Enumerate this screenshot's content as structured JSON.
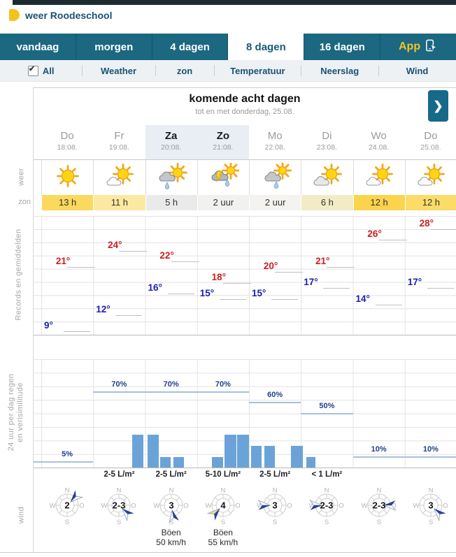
{
  "brand": {
    "title": "weer Roodeschool"
  },
  "top_nav": {
    "tabs": [
      {
        "label": "vandaag",
        "active": false
      },
      {
        "label": "morgen",
        "active": false
      },
      {
        "label": "4 dagen",
        "active": false
      },
      {
        "label": "8 dagen",
        "active": true
      },
      {
        "label": "16 dagen",
        "active": false
      }
    ],
    "app": {
      "label": "App"
    }
  },
  "sub_nav": {
    "all": {
      "label": "All",
      "checked": true,
      "check_glyph": "✔"
    },
    "items": [
      "Weather",
      "zon",
      "Temperatuur",
      "Neerslag",
      "Wind"
    ]
  },
  "period_header": {
    "title": "komende acht dagen",
    "subtitle": "tot en met donderdag, 25.08.",
    "next_button": "❯"
  },
  "days": [
    {
      "name": "Do",
      "date": "18:08.",
      "weekend": false
    },
    {
      "name": "Fr",
      "date": "19:08.",
      "weekend": false
    },
    {
      "name": "Za",
      "date": "20:08.",
      "weekend": true
    },
    {
      "name": "Zo",
      "date": "21:08.",
      "weekend": true
    },
    {
      "name": "Mo",
      "date": "22:08.",
      "weekend": false
    },
    {
      "name": "Di",
      "date": "23:08.",
      "weekend": false
    },
    {
      "name": "Wo",
      "date": "24.08.",
      "weekend": false
    },
    {
      "name": "Do",
      "date": "25.08.",
      "weekend": false
    }
  ],
  "weather_row": {
    "label": "weer",
    "icons": [
      "sun",
      "sun-cloud",
      "rain-sun",
      "thunder-rain-sun",
      "rain-cloud-sun",
      "cloud-sun",
      "sun-cloud",
      "sun-cloud"
    ]
  },
  "sun_row": {
    "label": "zon",
    "values": [
      {
        "text": "13 h",
        "bg": "#fbd95e"
      },
      {
        "text": "11 h",
        "bg": "#fce9a0"
      },
      {
        "text": "5 h",
        "bg": "#eaeaea"
      },
      {
        "text": "2 uur",
        "bg": "#f1f1ef"
      },
      {
        "text": "2 uur",
        "bg": "#f4f3f0"
      },
      {
        "text": "6 h",
        "bg": "#f2ecc6"
      },
      {
        "text": "12 h",
        "bg": "#fbd44e"
      },
      {
        "text": "12 h",
        "bg": "#fbdc69"
      }
    ]
  },
  "chart_data": [
    {
      "type": "line",
      "name": "temperature",
      "ylabel_rotated": "Records en gemiddelden",
      "unit": "°",
      "categories": [
        "Do",
        "Fr",
        "Za",
        "Zo",
        "Mo",
        "Di",
        "Wo",
        "Do"
      ],
      "ylim": [
        8,
        29
      ],
      "grid": true,
      "series": [
        {
          "name": "max",
          "color": "#cc1e1e",
          "values": [
            21,
            24,
            22,
            18,
            20,
            21,
            26,
            28
          ]
        },
        {
          "name": "min",
          "color": "#1e1eb4",
          "values": [
            9,
            12,
            16,
            15,
            15,
            17,
            14,
            17
          ]
        }
      ]
    },
    {
      "type": "bar",
      "name": "precipitation",
      "ylabel_rotated": "24 uur per dag regen en verisimilitude",
      "label_lines": [
        "24 uur per dag regen",
        "en verisimilitude"
      ],
      "categories": [
        "Do",
        "Fr",
        "Za",
        "Zo",
        "Mo",
        "Di",
        "Wo",
        "Do"
      ],
      "probability_percent_scale": [
        0,
        100
      ],
      "probability_segments": [
        {
          "label": "5%",
          "value": 5,
          "start_col": 0,
          "end_col": 0,
          "label_cols": [
            0
          ]
        },
        {
          "label": "70%",
          "value": 70,
          "start_col": 1,
          "end_col": 3,
          "label_cols": [
            1,
            2,
            3
          ]
        },
        {
          "label": "60%",
          "value": 60,
          "start_col": 4,
          "end_col": 4,
          "label_cols": [
            4
          ]
        },
        {
          "label": "50%",
          "value": 50,
          "start_col": 5,
          "end_col": 5,
          "label_cols": [
            5
          ]
        },
        {
          "label": "10%",
          "value": 10,
          "start_col": 6,
          "end_col": 7,
          "label_cols": [
            6,
            7
          ]
        }
      ],
      "amount_labels": [
        {
          "col": 1,
          "text": "2-5 L/m²"
        },
        {
          "col": 2,
          "text": "2-5 L/m²"
        },
        {
          "col": 3,
          "text": "5-10 L/m²"
        },
        {
          "col": 4,
          "text": "2-5 L/m²"
        },
        {
          "col": 5,
          "text": "< 1 L/m²"
        }
      ],
      "bars": [
        {
          "x": 130,
          "w": 16,
          "h": 47
        },
        {
          "x": 152,
          "w": 16,
          "h": 47
        },
        {
          "x": 170,
          "w": 15,
          "h": 15
        },
        {
          "x": 189,
          "w": 15,
          "h": 15
        },
        {
          "x": 244,
          "w": 16,
          "h": 15
        },
        {
          "x": 262,
          "w": 17,
          "h": 47
        },
        {
          "x": 280,
          "w": 17,
          "h": 47
        },
        {
          "x": 300,
          "w": 15,
          "h": 31
        },
        {
          "x": 319,
          "w": 15,
          "h": 31
        },
        {
          "x": 357,
          "w": 17,
          "h": 31
        },
        {
          "x": 379,
          "w": 13,
          "h": 15
        }
      ],
      "bar_color": "#6ba3d8",
      "line_color": "#a8bfe0"
    }
  ],
  "wind_row": {
    "label": "wind",
    "compass": {
      "n": "N",
      "e": "O",
      "s": "S",
      "w": "W"
    },
    "values": [
      {
        "force": "2",
        "from_deg": 45,
        "gust": false
      },
      {
        "force": "2-3",
        "from_deg": 135,
        "gust": false
      },
      {
        "force": "3",
        "from_deg": 170,
        "gust": false
      },
      {
        "force": "4",
        "from_deg": 225,
        "gust": true
      },
      {
        "force": "3",
        "from_deg": 270,
        "gust": false
      },
      {
        "force": "2-3",
        "from_deg": 270,
        "gust": false
      },
      {
        "force": "2-3",
        "from_deg": 90,
        "gust": false
      },
      {
        "force": "3",
        "from_deg": 135,
        "gust": false
      }
    ],
    "gusts": [
      {
        "col": 2,
        "label": "Böen",
        "value": "50 km/h"
      },
      {
        "col": 3,
        "label": "Böen",
        "value": "55 km/h"
      }
    ]
  }
}
